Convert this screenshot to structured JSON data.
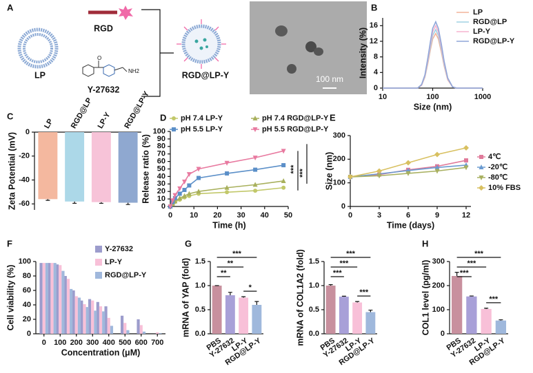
{
  "diagram": {
    "panel": "A",
    "labels": [
      "RGD",
      "LP",
      "Y-27632",
      "RGD@LP-Y"
    ]
  },
  "image": {
    "scale_bar": "100 nm"
  },
  "chart_data": [
    {
      "panel": "B",
      "type": "line",
      "log_x": true,
      "x": [
        10,
        50,
        60,
        70,
        80,
        90,
        100,
        115,
        130,
        150,
        170,
        200,
        250,
        300,
        1000
      ],
      "xlim": [
        10,
        1000
      ],
      "xticks": [
        10,
        100,
        1000
      ],
      "ylim": [
        0,
        18
      ],
      "yticks": [
        0,
        4,
        8,
        12,
        16
      ],
      "xlabel": "Size (nm)",
      "ylabel": "Intensity (%)",
      "legend": "upper right",
      "series": [
        {
          "name": "LP",
          "color": "#f2b49a",
          "values": [
            0,
            0,
            0.7,
            2.8,
            6.3,
            9.8,
            12.6,
            14,
            12.6,
            9.1,
            5.6,
            2.1,
            0.3,
            0,
            0
          ]
        },
        {
          "name": "RGD@LP",
          "color": "#9fd2e4",
          "values": [
            0,
            0,
            0.8,
            3,
            6.8,
            10.5,
            13.5,
            15,
            13.5,
            9.8,
            6,
            2.3,
            0.3,
            0,
            0
          ]
        },
        {
          "name": "LP-Y",
          "color": "#f5b3cf",
          "values": [
            0,
            0,
            0.8,
            3.2,
            7.2,
            11.2,
            14.4,
            16,
            14.4,
            10.4,
            6.4,
            2.4,
            0.3,
            0,
            0
          ]
        },
        {
          "name": "RGD@LP-Y",
          "color": "#8ea6d8",
          "values": [
            0,
            0,
            0.9,
            3.4,
            7.7,
            11.9,
            15.3,
            17,
            15.3,
            11.1,
            6.8,
            2.6,
            0.3,
            0,
            0
          ]
        }
      ]
    },
    {
      "panel": "C",
      "type": "bar",
      "categories": [
        "LP",
        "RGD@LP",
        "LP-Y",
        "RGD@LP-Y"
      ],
      "values": [
        -56,
        -58,
        -58.5,
        -59
      ],
      "errors": [
        1,
        1.5,
        1,
        1.5
      ],
      "colors": [
        "#f4b89f",
        "#acd8e8",
        "#f7c3d8",
        "#8fa8d0"
      ],
      "ylim": [
        -65,
        0
      ],
      "yticks": [
        0,
        -20,
        -40,
        -60
      ],
      "ylabel": "Zeta Potential (mV)"
    },
    {
      "panel": "D",
      "type": "line",
      "x": [
        0,
        1,
        2,
        4,
        6,
        8,
        12,
        24,
        36,
        48
      ],
      "xlim": [
        0,
        50
      ],
      "xticks": [
        0,
        10,
        20,
        30,
        40,
        50
      ],
      "ylim": [
        0,
        100
      ],
      "yticks": [
        0,
        10,
        20,
        30,
        40,
        50,
        60,
        70,
        80,
        90,
        100
      ],
      "xlabel": "Time (h)",
      "ylabel": "Release ratio (%)",
      "annotations": [
        "***",
        "***"
      ],
      "legend": "top",
      "series": [
        {
          "name": "pH 7.4 LP-Y",
          "color": "#c2c86a",
          "marker": "circle",
          "values": [
            0,
            3,
            6,
            9,
            12,
            14,
            17,
            19,
            21,
            25
          ]
        },
        {
          "name": "pH 7.4 RGD@LP-Y",
          "color": "#a8b05c",
          "marker": "triangle",
          "values": [
            0,
            4,
            7,
            11,
            14,
            17,
            20,
            25,
            29,
            34
          ]
        },
        {
          "name": "pH 5.5 LP-Y",
          "color": "#5b8fc8",
          "marker": "square",
          "values": [
            0,
            6,
            11,
            17,
            22,
            28,
            38,
            44,
            49,
            55
          ]
        },
        {
          "name": "pH 5.5 RGD@LP-Y",
          "color": "#e87aa0",
          "marker": "triangle-down",
          "values": [
            0,
            8,
            15,
            24,
            33,
            43,
            50,
            58,
            65,
            74
          ]
        }
      ]
    },
    {
      "panel": "E",
      "type": "line",
      "x": [
        0,
        3,
        6,
        9,
        12
      ],
      "xlim": [
        0,
        12.5
      ],
      "xticks": [
        0,
        3,
        6,
        9,
        12
      ],
      "ylim": [
        0,
        300
      ],
      "yticks": [
        0,
        100,
        200,
        300
      ],
      "xlabel": "Time (days)",
      "ylabel": "Size (nm)",
      "legend": "right",
      "series": [
        {
          "name": "4℃",
          "color": "#e07a9a",
          "marker": "square",
          "values": [
            125,
            135,
            155,
            170,
            195
          ]
        },
        {
          "name": "-20℃",
          "color": "#6a9ad0",
          "marker": "triangle",
          "values": [
            125,
            138,
            152,
            165,
            175
          ]
        },
        {
          "name": "-80℃",
          "color": "#a8b060",
          "marker": "triangle-down",
          "values": [
            125,
            130,
            140,
            150,
            165
          ]
        },
        {
          "name": "10% FBS",
          "color": "#d8c060",
          "marker": "diamond",
          "values": [
            125,
            150,
            185,
            220,
            248
          ]
        }
      ]
    },
    {
      "panel": "F",
      "type": "bar",
      "x": [
        0,
        50,
        100,
        150,
        200,
        250,
        300,
        350,
        400,
        500,
        600,
        700
      ],
      "xlim": [
        -50,
        750
      ],
      "xticks": [
        0,
        100,
        200,
        300,
        400,
        500,
        600,
        700
      ],
      "ylim": [
        0,
        100
      ],
      "yticks": [
        0,
        20,
        40,
        60,
        80,
        100
      ],
      "xlabel": "Concentration (μM)",
      "ylabel": "Cell viability (%)",
      "legend": "upper right",
      "series": [
        {
          "name": "Y-27632",
          "color": "#9c9ccc",
          "values": [
            98,
            98,
            96,
            80,
            60,
            46,
            48,
            44,
            38,
            25,
            20,
            0
          ]
        },
        {
          "name": "LP-Y",
          "color": "#f8c0d8",
          "values": [
            98,
            98,
            95,
            76,
            52,
            41,
            46,
            38,
            22,
            15,
            12,
            2
          ]
        },
        {
          "name": "RGD@LP-Y",
          "color": "#a0b8dc",
          "values": [
            98,
            98,
            87,
            62,
            50,
            37,
            32,
            31,
            11,
            5,
            3,
            1
          ]
        }
      ]
    },
    {
      "panel": "G",
      "type": "bar",
      "categories": [
        "PBS",
        "Y-27632",
        "LP-Y",
        "RGD@LP-Y"
      ],
      "values": [
        1.0,
        0.8,
        0.75,
        0.6
      ],
      "errors": [
        0,
        0.06,
        0.02,
        0.07
      ],
      "colors": [
        "#c8909e",
        "#a8a0d8",
        "#f8c0d8",
        "#9fb8dc"
      ],
      "ylim": [
        0,
        1.5
      ],
      "yticks": [
        {
          "value": 0,
          "label": "0.0"
        },
        {
          "value": 0.5,
          "label": "0.5"
        },
        {
          "value": 1,
          "label": "1.0"
        },
        {
          "value": 1.5,
          "label": "1.5"
        }
      ],
      "ylabel": "mRNA of YAP (fold)",
      "annotations": [
        "***",
        "**",
        "**",
        "*"
      ]
    },
    {
      "type": "bar",
      "categories": [
        "PBS",
        "Y-27632",
        "LP-Y",
        "RGD@LP-Y"
      ],
      "values": [
        1.0,
        0.77,
        0.65,
        0.45
      ],
      "errors": [
        0.02,
        0.01,
        0.02,
        0.04
      ],
      "colors": [
        "#c8909e",
        "#a8a0d8",
        "#f8c0d8",
        "#9fb8dc"
      ],
      "ylim": [
        0,
        1.5
      ],
      "yticks": [
        {
          "value": 0,
          "label": "0.0"
        },
        {
          "value": 0.5,
          "label": "0.5"
        },
        {
          "value": 1,
          "label": "1.0"
        },
        {
          "value": 1.5,
          "label": "1.5"
        }
      ],
      "ylabel": "mRNA of COL1A2 (fold)",
      "annotations": [
        "***",
        "***",
        "***",
        "***"
      ]
    },
    {
      "panel": "H",
      "type": "bar",
      "categories": [
        "PBS",
        "Y-27632",
        "LP-Y",
        "RGD@LP-Y"
      ],
      "values": [
        240,
        155,
        103,
        55
      ],
      "errors": [
        15,
        2,
        3,
        3
      ],
      "colors": [
        "#c8909e",
        "#a8a0d8",
        "#f8c0d8",
        "#9fb8dc"
      ],
      "ylim": [
        0,
        300
      ],
      "yticks": [
        0,
        100,
        200,
        300
      ],
      "ylabel": "COL1 level (pg/ml)",
      "annotations": [
        "***",
        "***",
        "***",
        "***"
      ]
    }
  ]
}
